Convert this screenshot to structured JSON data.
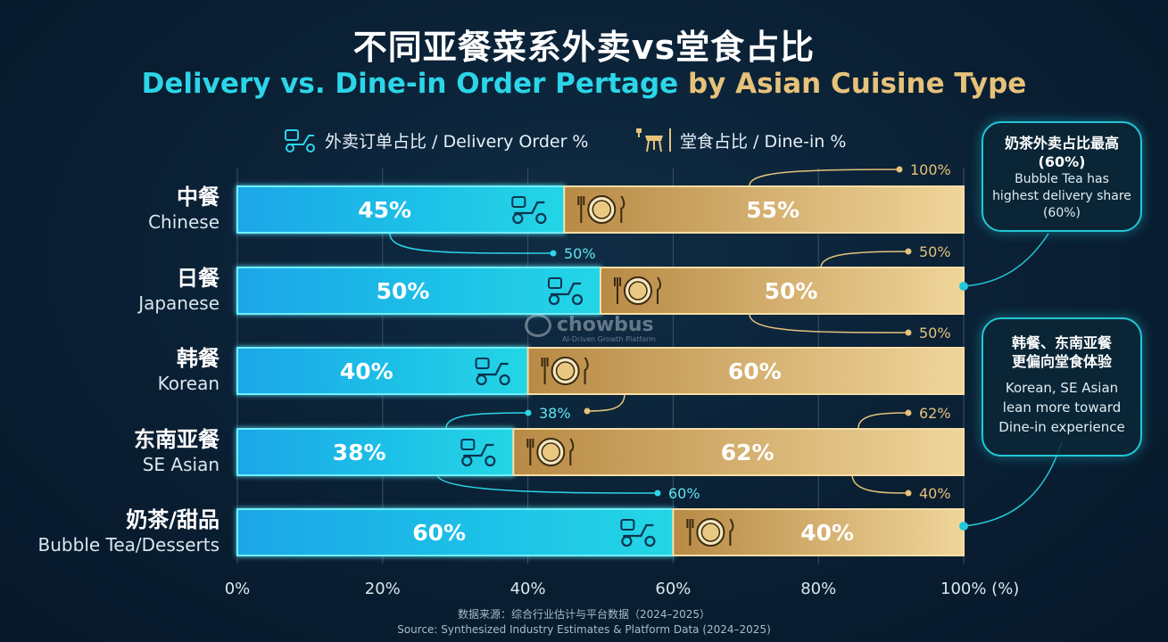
{
  "title_zh": "不同亚餐菜系外卖vs堂食占比",
  "title_en_part1": "Delivery vs. Dine-in Order Pertage",
  "title_en_part2": "by Asian Cuisine Type",
  "colors": {
    "delivery": "#19c6e6",
    "dinein": "#d9b46c",
    "accent_cyan": "#22c7d8",
    "accent_gold": "#e6c27a"
  },
  "legend": {
    "delivery": "外卖订单占比 / Delivery Order %",
    "delivery_icon": "scooter-icon",
    "dinein": "堂食占比 / Dine-in %",
    "dinein_icon": "dining-table-icon"
  },
  "chart_data": {
    "type": "bar",
    "orientation": "horizontal",
    "stacked": true,
    "categories_zh": [
      "中餐",
      "日餐",
      "韩餐",
      "东南亚餐",
      "奶茶/甜品"
    ],
    "categories": [
      "Chinese",
      "Japanese",
      "Korean",
      "SE Asian",
      "Bubble Tea/Desserts"
    ],
    "series": [
      {
        "name": "外卖订单占比 / Delivery Order %",
        "values": [
          45,
          50,
          40,
          38,
          60
        ],
        "labels": [
          "45%",
          "50%",
          "40%",
          "38%",
          "60%"
        ]
      },
      {
        "name": "堂食占比 / Dine-in %",
        "values": [
          55,
          50,
          60,
          62,
          40
        ],
        "labels": [
          "55%",
          "50%",
          "60%",
          "62%",
          "40%"
        ]
      }
    ],
    "xlim": [
      0,
      100
    ],
    "xticks": [
      0,
      20,
      40,
      60,
      80,
      100
    ],
    "xtick_labels": [
      "0%",
      "20%",
      "40%",
      "60%",
      "80%",
      "100% (%)"
    ],
    "annotations": [
      {
        "text": "100%",
        "color": "gold"
      },
      {
        "text": "50%",
        "color": "cyan"
      },
      {
        "text": "50%",
        "color": "gold"
      },
      {
        "text": "50%",
        "color": "gold"
      },
      {
        "text": "38%",
        "color": "cyan"
      },
      {
        "text": "62%",
        "color": "gold"
      },
      {
        "text": "60%",
        "color": "cyan"
      },
      {
        "text": "40%",
        "color": "gold"
      }
    ]
  },
  "callouts": {
    "bubble_tea": {
      "title_zh": "奶茶外卖占比最高",
      "title_pct": "(60%)",
      "body": "Bubble Tea has highest delivery share (60%)"
    },
    "korean_se": {
      "title_zh_1": "韩餐、东南亚餐",
      "title_zh_2": "更偏向堂食体验",
      "body": "Korean, SE Asian lean more toward Dine-in experience"
    }
  },
  "watermark": {
    "brand": "chowbus",
    "tagline": "AI-Driven Growth Platform"
  },
  "source": {
    "zh": "数据来源：综合行业估计与平台数据（2024–2025）",
    "en": "Source: Synthesized Industry Estimates & Platform Data (2024–2025)"
  }
}
